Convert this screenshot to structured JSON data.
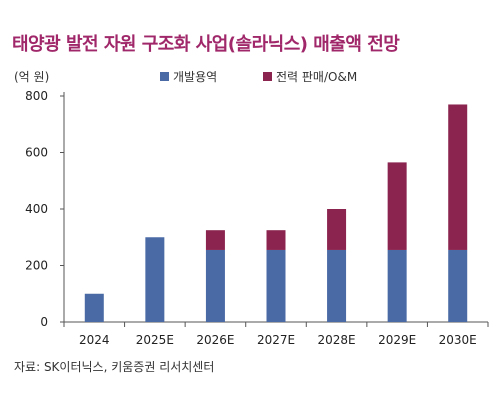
{
  "title": "태양광 발전 자원 구조화 사업(솔라닉스) 매출액 전망",
  "unit_label": "(억 원)",
  "source": "자료: SK이터닉스, 키움증권 리서치센터",
  "colors": {
    "title": "#a0286a",
    "series1": "#4a6aa5",
    "series2": "#8b2550"
  },
  "chart_data": {
    "type": "bar",
    "stacked": true,
    "categories": [
      "2024",
      "2025E",
      "2026E",
      "2027E",
      "2028E",
      "2029E",
      "2030E"
    ],
    "series": [
      {
        "name": "개발용역",
        "values": [
          100,
          300,
          255,
          255,
          255,
          255,
          255
        ]
      },
      {
        "name": "전력 판매/O&M",
        "values": [
          0,
          0,
          70,
          70,
          145,
          310,
          515
        ]
      }
    ],
    "yticks": [
      0,
      200,
      400,
      600,
      800
    ],
    "ylim": [
      0,
      800
    ],
    "legend_position": "top",
    "grid": false
  }
}
